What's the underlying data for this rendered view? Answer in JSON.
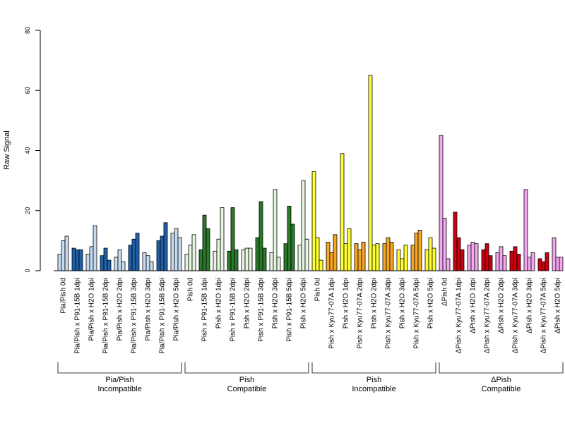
{
  "chart_data": {
    "type": "bar",
    "ylabel": "Raw Signal",
    "ylim": [
      0,
      80
    ],
    "yticks": [
      0,
      20,
      40,
      60,
      80
    ],
    "grid": false,
    "categories": [
      "Pia/Pish 0d",
      "Pia/Pish x P91-15B 1dpi",
      "Pia/Pish x H2O 1dpi",
      "Pia/Pish x P91-15B 2dpi",
      "Pia/Pish x H2O 2dpi",
      "Pia/Pish x P91-15B 3dpi",
      "Pia/Pish x H2O 3dpi",
      "Pia/Pish x P91-15B 5dpi",
      "Pia/Pish x H2O 5dpi",
      "Pish 0d",
      "Pish x P91-15B 1dpi",
      "Pish x H2O 1dpi",
      "Pish x P91-15B 2dpi",
      "Pish x H2O 2dpi",
      "Pish x P91-15B 3dpi",
      "Pish x H2O 3dpi",
      "Pish x P91-15B 5dpi",
      "Pish x H2O 5dpi",
      "Pish 0d",
      "Pish x Kyu77-07A 1dpi",
      "Pish x H2O 1dpi",
      "Pish x Kyu77-07A 2dpi",
      "Pish x H2O 2dpi",
      "Pish x Kyu77-07A 3dpi",
      "Pish x H2O 3dpi",
      "Pish x Kyu77-07A 5dpi",
      "Pish x H2O 5dpi",
      "ΔPish 0d",
      "ΔPish x Kyu77-07A 1dpi",
      "ΔPish x H2O 1dpi",
      "ΔPish x Kyu77-07A 2dpi",
      "ΔPish x H2O 2dpi",
      "ΔPish x Kyu77-07A 3dpi",
      "ΔPish x H2O 3dpi",
      "ΔPish x Kyu77-07A 5dpi",
      "ΔPish x H2O 5dpi"
    ],
    "values": [
      [
        5.5,
        10.0,
        11.5
      ],
      [
        7.5,
        7.0,
        7.0
      ],
      [
        5.5,
        8.0,
        15.0
      ],
      [
        5.0,
        7.5,
        3.5
      ],
      [
        4.5,
        7.0,
        3.0
      ],
      [
        8.5,
        10.5,
        12.5
      ],
      [
        6.0,
        5.0,
        3.0
      ],
      [
        10.0,
        11.5,
        16.0
      ],
      [
        12.5,
        14.0,
        11.0
      ],
      [
        5.5,
        8.5,
        12.0
      ],
      [
        7.0,
        18.5,
        14.0
      ],
      [
        6.5,
        10.5,
        21.0
      ],
      [
        6.5,
        21.0,
        7.0
      ],
      [
        7.0,
        7.5,
        7.5
      ],
      [
        11.0,
        23.0,
        7.5
      ],
      [
        6.0,
        27.0,
        4.5
      ],
      [
        9.0,
        21.5,
        15.5
      ],
      [
        8.5,
        30.0,
        10.5
      ],
      [
        33.0,
        11.0,
        3.5
      ],
      [
        9.5,
        6.0,
        12.0
      ],
      [
        39.0,
        9.0,
        14.0
      ],
      [
        9.0,
        7.0,
        9.5
      ],
      [
        65.0,
        8.5,
        9.0
      ],
      [
        9.0,
        11.0,
        9.5
      ],
      [
        7.0,
        4.0,
        8.5
      ],
      [
        8.5,
        12.5,
        13.5
      ],
      [
        7.0,
        11.0,
        7.5
      ],
      [
        45.0,
        17.5,
        4.0
      ],
      [
        19.5,
        11.0,
        7.0
      ],
      [
        8.5,
        9.5,
        9.0
      ],
      [
        7.0,
        9.0,
        5.0
      ],
      [
        6.0,
        8.0,
        5.0
      ],
      [
        6.5,
        8.0,
        5.5
      ],
      [
        27.0,
        4.5,
        6.0
      ],
      [
        4.0,
        3.0,
        6.0
      ],
      [
        11.0,
        4.5,
        4.5
      ]
    ],
    "colors": [
      "#c6dbef",
      "#2060a8",
      "#c6dbef",
      "#2060a8",
      "#c6dbef",
      "#2060a8",
      "#c6dbef",
      "#2060a8",
      "#c6dbef",
      "#e5f5e0",
      "#2a7a2a",
      "#e5f5e0",
      "#2a7a2a",
      "#e5f5e0",
      "#2a7a2a",
      "#e5f5e0",
      "#2a7a2a",
      "#e5f5e0",
      "#ffff33",
      "#f5a623",
      "#ffff33",
      "#f5a623",
      "#ffff33",
      "#f5a623",
      "#ffff33",
      "#f5a623",
      "#ffff33",
      "#f2a8ee",
      "#cc0011",
      "#f2a8ee",
      "#cc0011",
      "#f2a8ee",
      "#cc0011",
      "#f2a8ee",
      "#cc0011",
      "#f2a8ee"
    ],
    "groups": [
      {
        "line1": "Pia/Pish",
        "line2": "Incompatible",
        "start": 0,
        "end": 8
      },
      {
        "line1": "Pish",
        "line2": "Compatible",
        "start": 9,
        "end": 17
      },
      {
        "line1": "Pish",
        "line2": "Incompatible",
        "start": 18,
        "end": 26
      },
      {
        "line1": "ΔPish",
        "line2": "Compatible",
        "start": 27,
        "end": 35
      }
    ]
  }
}
